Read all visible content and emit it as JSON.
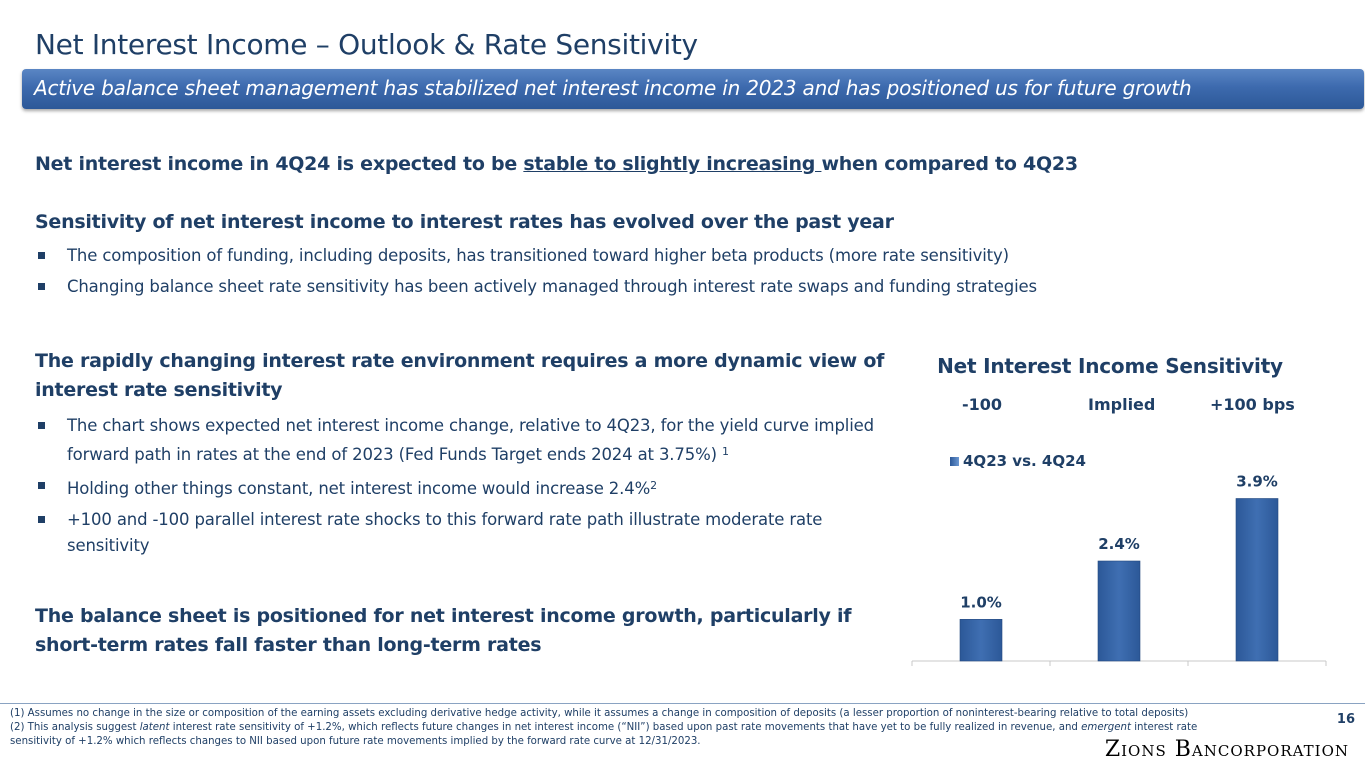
{
  "page": {
    "title": "Net Interest Income – Outlook & Rate Sensitivity",
    "subtitle": "Active balance sheet management has stabilized net interest income in 2023 and has positioned us for future growth",
    "page_number": "16",
    "logo_text": "Zions Bancorporation"
  },
  "section1": {
    "pre": "Net interest income in 4Q24 is expected to be ",
    "underlined": "stable to slightly increasing ",
    "post": "when compared to 4Q23"
  },
  "section2": {
    "heading": "Sensitivity of net interest income to interest rates has evolved over the past year",
    "bullets": [
      "The composition of funding, including deposits, has transitioned toward higher beta products (more rate sensitivity)",
      "Changing balance sheet rate sensitivity has been actively managed through interest rate swaps and funding strategies"
    ]
  },
  "section3": {
    "heading": "The rapidly changing interest rate environment requires a more dynamic view of interest rate sensitivity",
    "bullet1": "The chart shows expected net interest income change, relative to 4Q23, for the yield curve implied forward path in rates at the end of 2023 (Fed Funds Target ends 2024 at 3.75%) ",
    "bullet1_sup": "1",
    "bullet2": "Holding other things constant, net interest income would increase 2.4%",
    "bullet2_sup": "2",
    "bullet3": "+100 and -100 parallel interest rate shocks to this forward rate path illustrate moderate rate sensitivity"
  },
  "section4": {
    "heading": "The balance sheet is positioned for net interest income growth, particularly if short-term rates fall faster than long-term rates"
  },
  "chart_data": {
    "type": "bar",
    "title": "Net Interest Income Sensitivity",
    "categories": [
      "-100",
      "Implied",
      "+100 bps"
    ],
    "series": [
      {
        "name": "4Q23 vs. 4Q24",
        "values": [
          1.0,
          2.4,
          3.9
        ]
      }
    ],
    "data_labels": [
      "1.0%",
      "2.4%",
      "3.9%"
    ],
    "unit": "%",
    "ylim": [
      0,
      4.2
    ],
    "legend": "top-left",
    "grid": false,
    "bar_color": "#3f6fb2"
  },
  "footnotes": {
    "note1": "(1) Assumes no change in the size or composition of the earning assets excluding derivative hedge activity, while it assumes a change in composition of deposits (a lesser proportion of noninterest-bearing relative to total deposits)",
    "note2_a": "(2) This analysis suggest ",
    "note2_latent": "latent",
    "note2_b": " interest rate sensitivity of +1.2%, which reflects future changes in net interest income (“NII”) based upon past rate movements that have yet to be fully realized in revenue, and ",
    "note2_emergent": "emergent",
    "note2_c": " interest rate sensitivity of +1.2% which reflects changes to NII based upon future rate movements implied by the forward rate curve at 12/31/2023."
  }
}
